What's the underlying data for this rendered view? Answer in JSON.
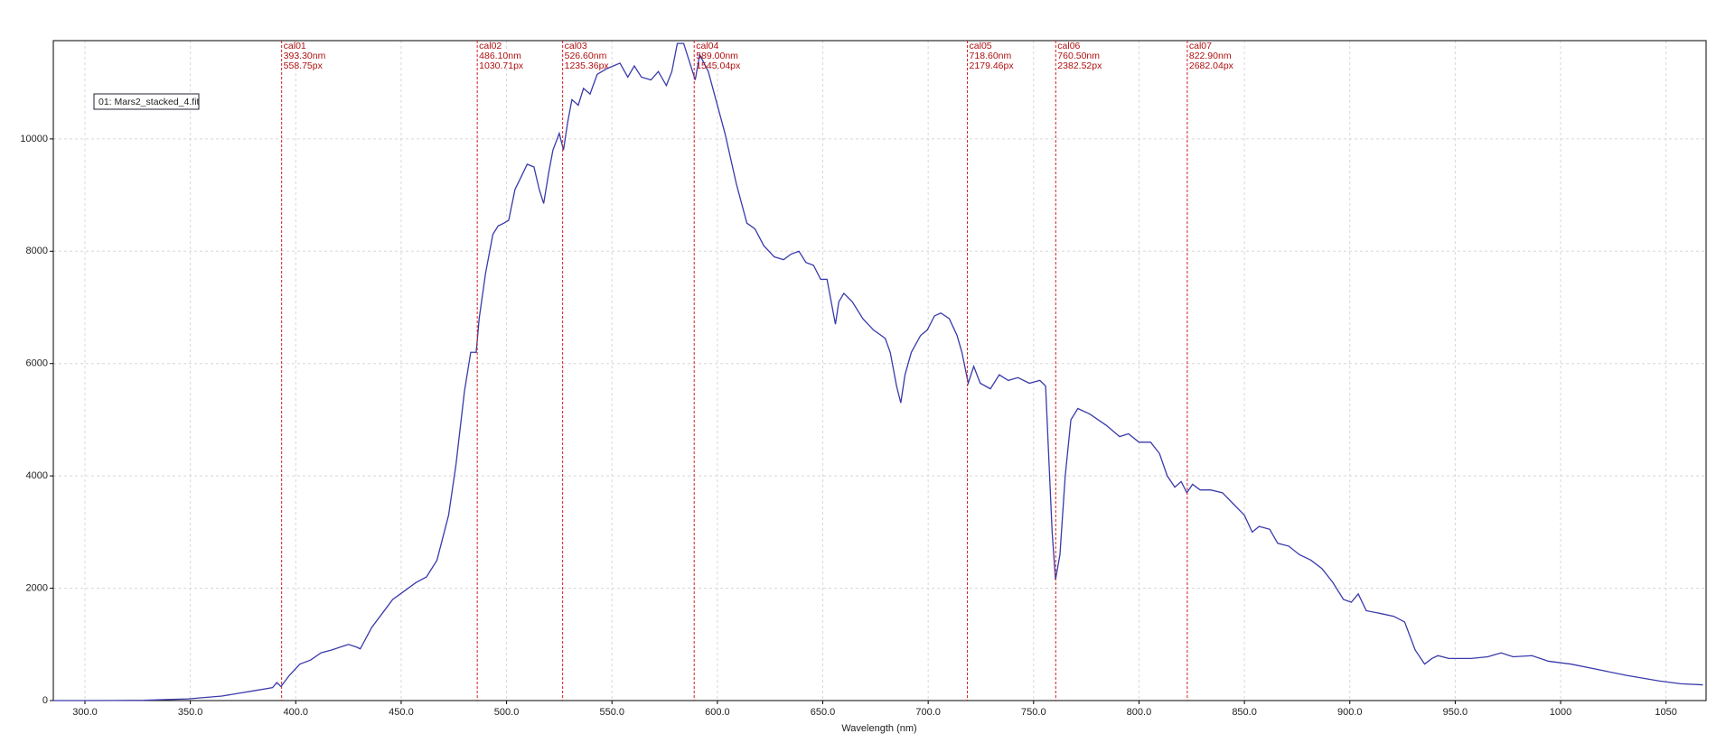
{
  "chart_data": {
    "type": "line",
    "x_label": "Wavelength (nm)",
    "xlim": [
      285,
      1069
    ],
    "ylim": [
      0,
      11750
    ],
    "xticks": [
      {
        "value": 300,
        "label": "300.0"
      },
      {
        "value": 350,
        "label": "350.0"
      },
      {
        "value": 400,
        "label": "400.0"
      },
      {
        "value": 450,
        "label": "450.0"
      },
      {
        "value": 500,
        "label": "500.0"
      },
      {
        "value": 550,
        "label": "550.0"
      },
      {
        "value": 600,
        "label": "600.0"
      },
      {
        "value": 650,
        "label": "650.0"
      },
      {
        "value": 700,
        "label": "700.0"
      },
      {
        "value": 750,
        "label": "750.0"
      },
      {
        "value": 800,
        "label": "800.0"
      },
      {
        "value": 850,
        "label": "850.0"
      },
      {
        "value": 900,
        "label": "900.0"
      },
      {
        "value": 950,
        "label": "950.0"
      },
      {
        "value": 1000,
        "label": "1000"
      },
      {
        "value": 1050,
        "label": "1050"
      }
    ],
    "yticks": [
      0,
      2000,
      4000,
      6000,
      8000,
      10000
    ],
    "grid": true,
    "x": [
      285,
      300,
      328,
      349,
      365,
      373,
      381,
      389,
      391,
      393,
      397,
      402,
      407,
      412,
      417,
      425,
      429,
      430.6,
      436,
      441,
      446,
      451.5,
      457,
      462,
      467,
      472.5,
      476,
      480,
      483,
      485.6,
      487,
      490,
      493.5,
      496,
      498.7,
      501,
      504,
      506.6,
      509.8,
      513,
      515.5,
      517.6,
      520,
      522,
      525,
      527,
      529,
      531,
      534,
      536.5,
      539.6,
      543,
      547.5,
      553.8,
      557.5,
      560.6,
      564,
      568.5,
      572,
      575.8,
      578.4,
      581,
      584,
      587.4,
      589.5,
      591.6,
      595.7,
      600,
      603.6,
      609,
      614,
      617.8,
      622,
      627,
      631.4,
      635,
      638.7,
      642,
      645.6,
      649,
      652,
      654.5,
      656,
      657.6,
      660,
      664,
      669,
      674,
      679.6,
      682,
      685,
      687,
      689,
      692,
      696.4,
      699.6,
      703,
      706,
      710,
      713.7,
      716,
      719,
      721.6,
      724.7,
      729.5,
      733.7,
      738,
      742.6,
      748,
      753,
      755.7,
      757,
      758.8,
      760.4,
      762.5,
      765,
      767.7,
      771,
      776.7,
      784.5,
      790.8,
      795,
      800,
      805.5,
      809.7,
      813.4,
      817,
      820,
      822.7,
      825.4,
      829,
      834,
      839.6,
      844.8,
      850,
      853.7,
      857,
      862,
      865.8,
      871,
      876,
      881.5,
      886.8,
      892,
      897,
      900.7,
      904,
      907.8,
      914.6,
      920.9,
      926,
      931,
      935.5,
      939,
      941.8,
      947,
      957.6,
      965.4,
      971.8,
      977.5,
      986.4,
      994.3,
      1004.8,
      1018,
      1031,
      1046.7,
      1057,
      1067.5
    ],
    "series": [
      {
        "name": "01: Mars2_stacked_4.fit",
        "color": "#3a3aaa",
        "values": [
          0,
          0,
          5,
          30,
          80,
          130,
          180,
          230,
          320,
          250,
          450,
          650,
          720,
          850,
          900,
          1000,
          950,
          920,
          1300,
          1550,
          1800,
          1950,
          2100,
          2200,
          2500,
          3300,
          4200,
          5500,
          6200,
          6200,
          6800,
          7600,
          8300,
          8450,
          8500,
          8550,
          9100,
          9300,
          9550,
          9500,
          9100,
          8850,
          9400,
          9800,
          10100,
          9800,
          10300,
          10700,
          10600,
          10900,
          10800,
          11150,
          11250,
          11350,
          11100,
          11300,
          11100,
          11050,
          11200,
          10950,
          11200,
          11700,
          11700,
          11300,
          11050,
          11500,
          11200,
          10600,
          10100,
          9200,
          8500,
          8400,
          8100,
          7900,
          7850,
          7950,
          8000,
          7800,
          7750,
          7500,
          7500,
          7000,
          6700,
          7100,
          7250,
          7100,
          6800,
          6600,
          6450,
          6200,
          5600,
          5300,
          5800,
          6200,
          6500,
          6600,
          6850,
          6900,
          6800,
          6500,
          6200,
          5650,
          5950,
          5650,
          5550,
          5800,
          5700,
          5750,
          5650,
          5700,
          5600,
          4500,
          3000,
          2150,
          2600,
          4000,
          5000,
          5200,
          5100,
          4900,
          4700,
          4750,
          4600,
          4600,
          4400,
          4000,
          3800,
          3900,
          3700,
          3850,
          3750,
          3750,
          3700,
          3500,
          3300,
          3000,
          3100,
          3050,
          2800,
          2750,
          2600,
          2500,
          2350,
          2100,
          1800,
          1750,
          1900,
          1600,
          1550,
          1500,
          1400,
          900,
          650,
          750,
          800,
          750,
          750,
          780,
          850,
          780,
          800,
          700,
          650,
          550,
          450,
          350,
          300,
          280
        ]
      }
    ],
    "marker_color": "#d02020",
    "markers": [
      {
        "name": "cal01",
        "x": 393.3,
        "x_label": "393.30nm",
        "px": "558.75px"
      },
      {
        "name": "cal02",
        "x": 486.1,
        "x_label": "486.10nm",
        "px": "1030.71px"
      },
      {
        "name": "cal03",
        "x": 526.6,
        "x_label": "526.60nm",
        "px": "1235.36px"
      },
      {
        "name": "cal04",
        "x": 589.0,
        "x_label": "589.00nm",
        "px": "1545.04px"
      },
      {
        "name": "cal05",
        "x": 718.6,
        "x_label": "718.60nm",
        "px": "2179.46px"
      },
      {
        "name": "cal06",
        "x": 760.5,
        "x_label": "760.50nm",
        "px": "2382.52px"
      },
      {
        "name": "cal07",
        "x": 822.9,
        "x_label": "822.90nm",
        "px": "2682.04px"
      }
    ]
  }
}
